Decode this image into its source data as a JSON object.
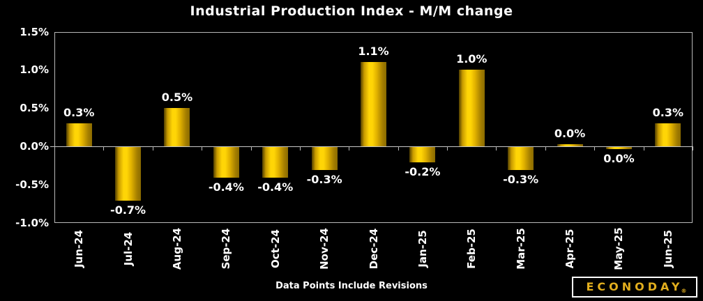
{
  "title": "Industrial Production Index - M/M change",
  "footer": "Data Points Include Revisions",
  "logo": {
    "text": "ECONODAY",
    "reg": "®"
  },
  "colors": {
    "background": "#000000",
    "bar_bright": "#ffd506",
    "bar_dark_edge": "#4f3d00",
    "axis_line": "#b9b9b9",
    "text": "#ffffff",
    "logo_gold": "#e2ae1e"
  },
  "chart_data": {
    "type": "bar",
    "title": "Industrial Production Index - M/M change",
    "xlabel": "",
    "ylabel": "",
    "categories": [
      "Jun-24",
      "Jul-24",
      "Aug-24",
      "Sep-24",
      "Oct-24",
      "Nov-24",
      "Dec-24",
      "Jan-25",
      "Feb-25",
      "Mar-25",
      "Apr-25",
      "May-25",
      "Jun-25"
    ],
    "values": [
      0.3,
      -0.7,
      0.5,
      -0.4,
      -0.4,
      -0.3,
      1.1,
      -0.2,
      1.0,
      -0.3,
      0.0,
      0.0,
      0.3
    ],
    "data_labels": [
      "0.3%",
      "-0.7%",
      "0.5%",
      "-0.4%",
      "-0.4%",
      "-0.3%",
      "1.1%",
      "-0.2%",
      "1.0%",
      "-0.3%",
      "0.0%",
      "0.0%",
      "0.3%"
    ],
    "plot_values": [
      0.3,
      -0.7,
      0.5,
      -0.4,
      -0.4,
      -0.3,
      1.1,
      -0.2,
      1.0,
      -0.3,
      0.03,
      -0.03,
      0.3
    ],
    "y_ticks": [
      {
        "value": 1.5,
        "label": "1.5%"
      },
      {
        "value": 1.0,
        "label": "1.0%"
      },
      {
        "value": 0.5,
        "label": "0.5%"
      },
      {
        "value": 0.0,
        "label": "0.0%"
      },
      {
        "value": -0.5,
        "label": "-0.5%"
      },
      {
        "value": -1.0,
        "label": "-1.0%"
      }
    ],
    "ylim": [
      -1.0,
      1.5
    ],
    "grid": false,
    "legend": "none"
  }
}
